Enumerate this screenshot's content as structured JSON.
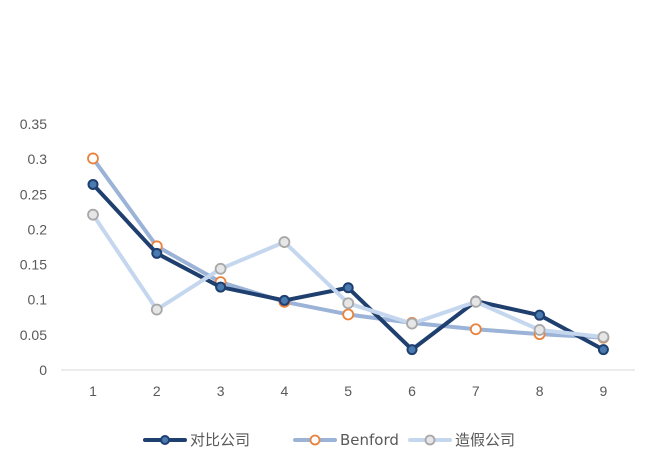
{
  "chart_data": {
    "type": "line",
    "title": "",
    "xlabel": "",
    "ylabel": "",
    "categories": [
      "1",
      "2",
      "3",
      "4",
      "5",
      "6",
      "7",
      "8",
      "9"
    ],
    "ylim": [
      0,
      0.35
    ],
    "yticks": [
      "0",
      "0.05",
      "0.1",
      "0.15",
      "0.2",
      "0.25",
      "0.3",
      "0.35"
    ],
    "grid": false,
    "legend": "bottom",
    "series": [
      {
        "name": "对比公司",
        "color": "#1f3f6e",
        "marker_fill": "#4a7bb0",
        "values": [
          0.264,
          0.166,
          0.118,
          0.099,
          0.117,
          0.029,
          0.098,
          0.078,
          0.029
        ]
      },
      {
        "name": "Benford",
        "color": "#9cb3d8",
        "marker_stroke": "#e8823d",
        "values": [
          0.301,
          0.176,
          0.125,
          0.097,
          0.079,
          0.067,
          0.058,
          0.051,
          0.046
        ]
      },
      {
        "name": "造假公司",
        "color": "#c5d7ee",
        "marker_stroke": "#a8a8a8",
        "values": [
          0.221,
          0.086,
          0.144,
          0.182,
          0.095,
          0.066,
          0.097,
          0.057,
          0.047
        ]
      }
    ]
  }
}
